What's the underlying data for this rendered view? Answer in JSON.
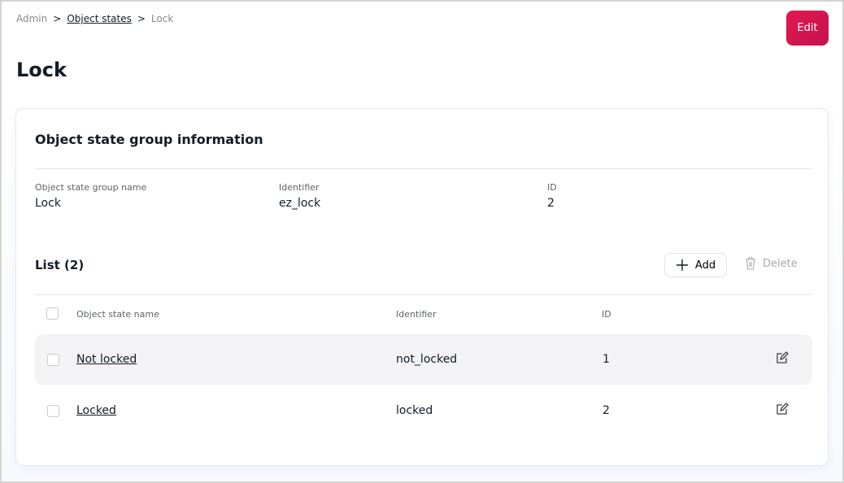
{
  "breadcrumb": [
    "Admin",
    "Object states",
    "Lock"
  ],
  "title": "Lock",
  "edit_label": "Edit",
  "info": {
    "title": "Object state group information",
    "fields": [
      {
        "label": "Object state group name",
        "value": "Lock"
      },
      {
        "label": "Identifier",
        "value": "ez_lock"
      },
      {
        "label": "ID",
        "value": "2"
      }
    ]
  },
  "list": {
    "title": "List (2)",
    "add_label": "Add",
    "delete_label": "Delete",
    "headers": [
      "Object state name",
      "Identifier",
      "ID"
    ],
    "rows": [
      {
        "name": "Not locked",
        "identifier": "not_locked",
        "id": "1"
      },
      {
        "name": "Locked",
        "identifier": "locked",
        "id": "2"
      }
    ]
  },
  "colors": {
    "accent": "#d8154f"
  }
}
